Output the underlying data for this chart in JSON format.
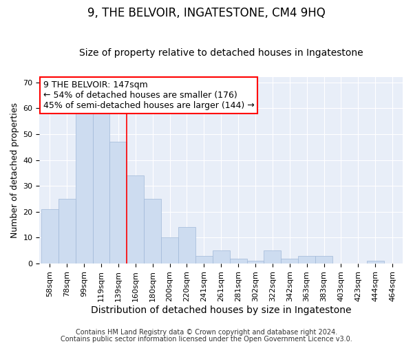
{
  "title": "9, THE BELVOIR, INGATESTONE, CM4 9HQ",
  "subtitle": "Size of property relative to detached houses in Ingatestone",
  "xlabel": "Distribution of detached houses by size in Ingatestone",
  "ylabel": "Number of detached properties",
  "categories": [
    "58sqm",
    "78sqm",
    "99sqm",
    "119sqm",
    "139sqm",
    "160sqm",
    "180sqm",
    "200sqm",
    "220sqm",
    "241sqm",
    "261sqm",
    "281sqm",
    "302sqm",
    "322sqm",
    "342sqm",
    "363sqm",
    "383sqm",
    "403sqm",
    "423sqm",
    "444sqm",
    "464sqm"
  ],
  "values": [
    21,
    25,
    58,
    58,
    47,
    34,
    25,
    10,
    14,
    3,
    5,
    2,
    1,
    5,
    2,
    3,
    3,
    0,
    0,
    1,
    0
  ],
  "bar_color": "#cddcf0",
  "bar_edge_color": "#a0b8d8",
  "redline_index": 4.5,
  "annotation_lines": [
    "9 THE BELVOIR: 147sqm",
    "← 54% of detached houses are smaller (176)",
    "45% of semi-detached houses are larger (144) →"
  ],
  "ylim": [
    0,
    72
  ],
  "yticks": [
    0,
    10,
    20,
    30,
    40,
    50,
    60,
    70
  ],
  "footnote1": "Contains HM Land Registry data © Crown copyright and database right 2024.",
  "footnote2": "Contains public sector information licensed under the Open Government Licence v3.0.",
  "background_color": "#ffffff",
  "plot_background_color": "#e8eef8",
  "grid_color": "#ffffff",
  "title_fontsize": 12,
  "subtitle_fontsize": 10,
  "xlabel_fontsize": 10,
  "ylabel_fontsize": 9,
  "tick_fontsize": 8,
  "annotation_fontsize": 9,
  "footnote_fontsize": 7
}
